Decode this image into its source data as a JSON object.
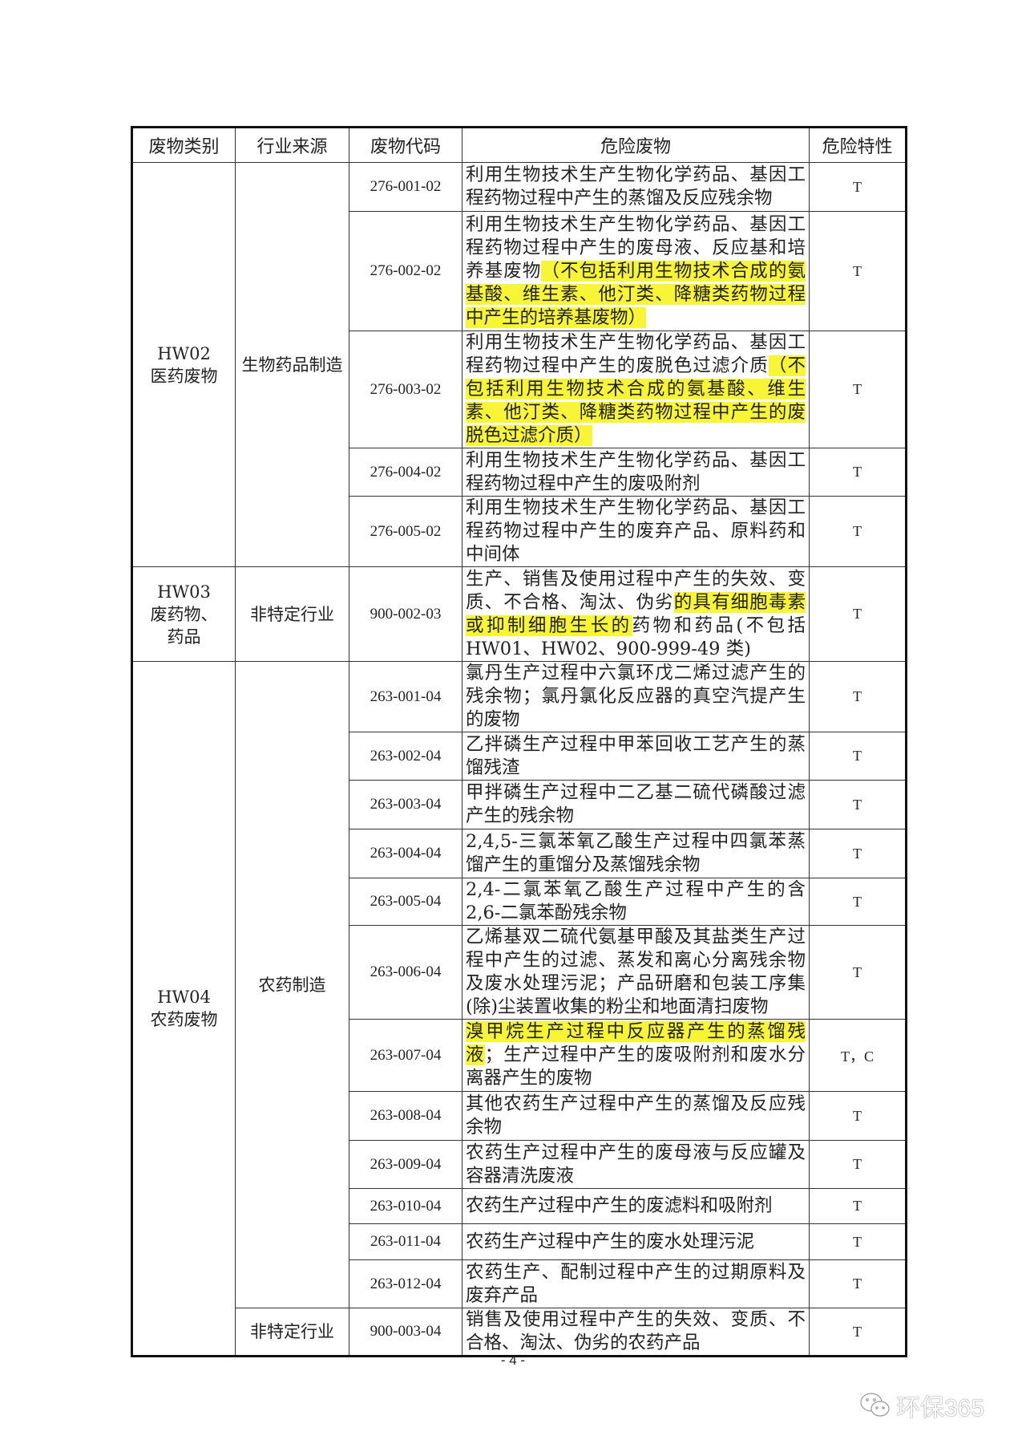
{
  "headers": [
    "废物类别",
    "行业来源",
    "废物代码",
    "危险废物",
    "危险特性"
  ],
  "categories": [
    {
      "code": "HW02",
      "name": "医药废物"
    },
    {
      "code": "HW03",
      "name": "废药物、药品"
    },
    {
      "code": "HW04",
      "name": "农药废物"
    }
  ],
  "sources": [
    "生物药品制造",
    "非特定行业",
    "农药制造",
    "非特定行业"
  ],
  "rows": [
    {
      "code": "276-001-02",
      "desc": [
        {
          "t": "利用生物技术生产生物化学药品、基因工程药物过程中产生的蒸馏及反应残余物"
        }
      ],
      "prop": "T"
    },
    {
      "code": "276-002-02",
      "desc": [
        {
          "t": "利用生物技术生产生物化学药品、基因工程药物过程中产生的废母液、反应基和培养基废物"
        },
        {
          "t": "（不包括利用生物技术合成的氨基酸、维生素、他汀类、降糖类药物过程中产生的培养基废物）",
          "hl": true
        }
      ],
      "prop": "T"
    },
    {
      "code": "276-003-02",
      "desc": [
        {
          "t": "利用生物技术生产生物化学药品、基因工程药物过程中产生的废脱色过滤介质"
        },
        {
          "t": "（不包括利用生物技术合成的氨基酸、维生素、他汀类、降糖类药物过程中产生的废脱色过滤介质）",
          "hl": true
        }
      ],
      "prop": "T"
    },
    {
      "code": "276-004-02",
      "desc": [
        {
          "t": "利用生物技术生产生物化学药品、基因工程药物过程中产生的废吸附剂"
        }
      ],
      "prop": "T"
    },
    {
      "code": "276-005-02",
      "desc": [
        {
          "t": "利用生物技术生产生物化学药品、基因工程药物过程中产生的废弃产品、原料药和中间体"
        }
      ],
      "prop": "T"
    },
    {
      "code": "900-002-03",
      "desc": [
        {
          "t": "生产、销售及使用过程中产生的失效、变质、不合格、淘汰、伪劣"
        },
        {
          "t": "的具有细胞毒素或抑制细胞生长的",
          "hl": true
        },
        {
          "t": "药物和药品(不包括 HW01、HW02、900-999-49 类)"
        }
      ],
      "prop": "T"
    },
    {
      "code": "263-001-04",
      "desc": [
        {
          "t": "氯丹生产过程中六氯环戊二烯过滤产生的残余物；氯丹氯化反应器的真空汽提产生的废物"
        }
      ],
      "prop": "T"
    },
    {
      "code": "263-002-04",
      "desc": [
        {
          "t": "乙拌磷生产过程中甲苯回收工艺产生的蒸馏残渣"
        }
      ],
      "prop": "T"
    },
    {
      "code": "263-003-04",
      "desc": [
        {
          "t": "甲拌磷生产过程中二乙基二硫代磷酸过滤产生的残余物"
        }
      ],
      "prop": "T"
    },
    {
      "code": "263-004-04",
      "desc": [
        {
          "t": "2,4,5-三氯苯氧乙酸生产过程中四氯苯蒸馏产生的重馏分及蒸馏残余物"
        }
      ],
      "prop": "T"
    },
    {
      "code": "263-005-04",
      "desc": [
        {
          "t": "2,4-二氯苯氧乙酸生产过程中产生的含2,6-二氯苯酚残余物"
        }
      ],
      "prop": "T"
    },
    {
      "code": "263-006-04",
      "desc": [
        {
          "t": "乙烯基双二硫代氨基甲酸及其盐类生产过程中产生的过滤、蒸发和离心分离残余物及废水处理污泥；产品研磨和包装工序集(除)尘装置收集的粉尘和地面清扫废物"
        }
      ],
      "prop": "T"
    },
    {
      "code": "263-007-04",
      "desc": [
        {
          "t": "溴甲烷生产过程中反应器产生的蒸馏残液",
          "hl": true
        },
        {
          "t": "；生产过程中产生的废吸附剂和废水分离器产生的废物"
        }
      ],
      "prop": "T，C"
    },
    {
      "code": "263-008-04",
      "desc": [
        {
          "t": "其他农药生产过程中产生的蒸馏及反应残余物"
        }
      ],
      "prop": "T"
    },
    {
      "code": "263-009-04",
      "desc": [
        {
          "t": "农药生产过程中产生的废母液与反应罐及容器清洗废液"
        }
      ],
      "prop": "T"
    },
    {
      "code": "263-010-04",
      "desc": [
        {
          "t": "农药生产过程中产生的废滤料和吸附剂"
        }
      ],
      "prop": "T"
    },
    {
      "code": "263-011-04",
      "desc": [
        {
          "t": "农药生产过程中产生的废水处理污泥"
        }
      ],
      "prop": "T"
    },
    {
      "code": "263-012-04",
      "desc": [
        {
          "t": "农药生产、配制过程中产生的过期原料及废弃产品"
        }
      ],
      "prop": "T"
    },
    {
      "code": "900-003-04",
      "desc": [
        {
          "t": "销售及使用过程中产生的失效、变质、不合格、淘汰、伪劣的农药产品"
        }
      ],
      "prop": "T"
    }
  ],
  "highlight_color": "#f7f535",
  "page_number": "- 4 -",
  "watermark": {
    "text": "环保365",
    "icon": "wechat-icon"
  }
}
